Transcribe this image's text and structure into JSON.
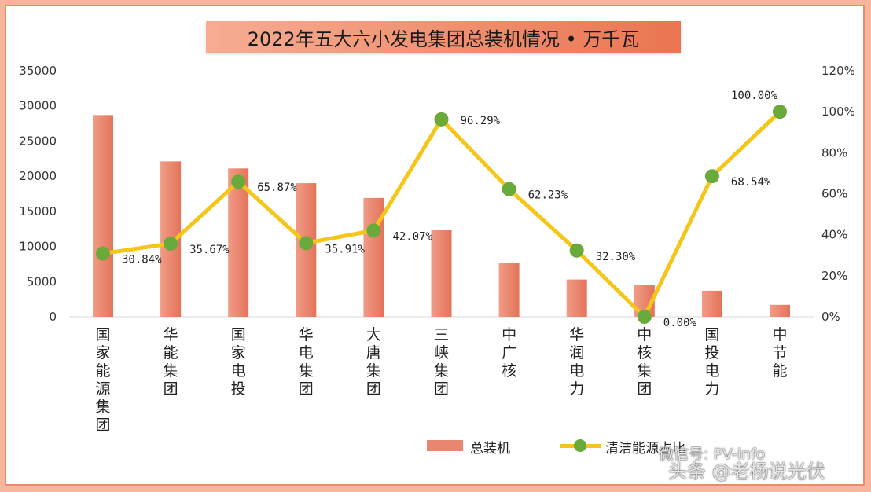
{
  "chart_data": {
    "type": "bar+line",
    "title": "2022年五大六小发电集团总装机情况 • 万千瓦",
    "categories": [
      "国家能源集团",
      "华能集团",
      "国家电投",
      "华电集团",
      "大唐集团",
      "三峡集团",
      "中广核",
      "华润电力",
      "中核集团",
      "国投电力",
      "中节能"
    ],
    "series": [
      {
        "name": "总装机",
        "type": "bar",
        "axis": "left",
        "color": "#e98670",
        "values": [
          28700,
          22100,
          21100,
          19000,
          16900,
          12300,
          7600,
          5300,
          4500,
          3700,
          1700
        ]
      },
      {
        "name": "清洁能源占比",
        "type": "line",
        "axis": "right",
        "color": "#f5c518",
        "marker_color": "#6aaa3a",
        "values": [
          30.84,
          35.67,
          65.87,
          35.91,
          42.07,
          96.29,
          62.23,
          32.3,
          0.0,
          68.54,
          100.0
        ],
        "labels": [
          "30.84%",
          "35.67%",
          "65.87%",
          "35.91%",
          "42.07%",
          "96.29%",
          "62.23%",
          "32.30%",
          "0.00%",
          "68.54%",
          "100.00%"
        ]
      }
    ],
    "y_left": {
      "range": [
        0,
        35000
      ],
      "ticks": [
        "0",
        "5000",
        "10000",
        "15000",
        "20000",
        "25000",
        "30000",
        "35000"
      ]
    },
    "y_right": {
      "range": [
        0,
        120
      ],
      "ticks": [
        "0%",
        "20%",
        "40%",
        "60%",
        "80%",
        "100%",
        "120%"
      ]
    },
    "grid": false,
    "legend_position": "bottom-right"
  },
  "watermark": {
    "line1": "微信号: PV-info",
    "line2": "头条 @老杨说光伏"
  }
}
